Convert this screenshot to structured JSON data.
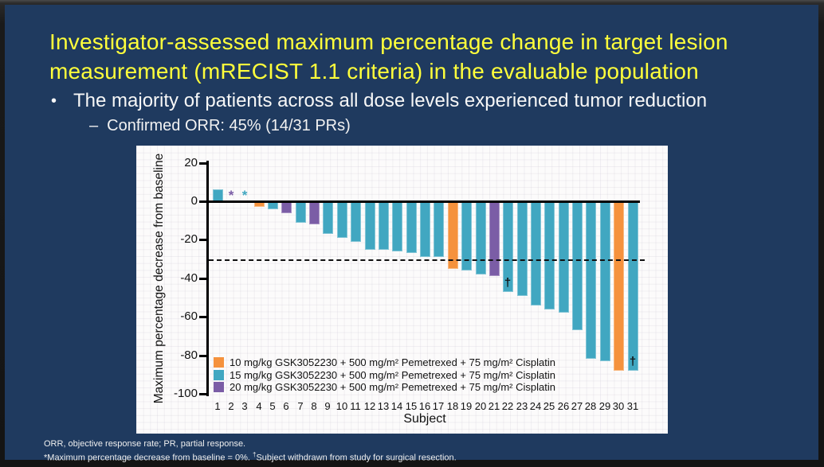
{
  "slide": {
    "title_line1": "Investigator-assessed maximum percentage change in target lesion",
    "title_line2": "measurement (mRECIST 1.1 criteria) in the evaluable population",
    "bullet_marker": "•",
    "bullet": "The majority of patients across all dose levels experienced tumor reduction",
    "sub_bullet_marker": "–",
    "sub_bullet": "Confirmed ORR: 45% (14/31 PRs)",
    "footnote_line1": "ORR, objective response rate; PR, partial response.",
    "footnote_line2_part1": "*Maximum percentage decrease from baseline = 0%. ",
    "footnote_dagger": "†",
    "footnote_line2_part2": "Subject withdrawn from study for surgical resection."
  },
  "colors": {
    "slide_background": "#1F3A5F",
    "title_text": "#FFFF3B",
    "body_text": "#FFFFFF",
    "dose_10": "#F5923D",
    "dose_15": "#41A7C1",
    "dose_20": "#7B5DA6",
    "axis": "#111111"
  },
  "chart_data": {
    "type": "bar",
    "title": "",
    "xlabel": "Subject",
    "ylabel": "Maximum percentage decrease from baseline",
    "ylim": [
      -100,
      20
    ],
    "yticks": [
      20,
      0,
      -20,
      -40,
      -60,
      -80,
      -100
    ],
    "reference_line_y": -30,
    "grid": "faint",
    "legend_position": "inside-bottom-left",
    "categories": [
      1,
      2,
      3,
      4,
      5,
      6,
      7,
      8,
      9,
      10,
      11,
      12,
      13,
      14,
      15,
      16,
      17,
      18,
      19,
      20,
      21,
      22,
      23,
      24,
      25,
      26,
      27,
      28,
      29,
      30,
      31
    ],
    "values": [
      6,
      0,
      0,
      -3,
      -4,
      -6,
      -11,
      -12,
      -17,
      -19,
      -21,
      -25,
      -25,
      -26,
      -27,
      -29,
      -29,
      -35,
      -36,
      -38,
      -39,
      -47,
      -49,
      -54,
      -56,
      -58,
      -67,
      -82,
      -83,
      -88,
      -88
    ],
    "dose_group": [
      "dose_15",
      "dose_20",
      "dose_15",
      "dose_10",
      "dose_15",
      "dose_20",
      "dose_15",
      "dose_20",
      "dose_15",
      "dose_15",
      "dose_15",
      "dose_15",
      "dose_15",
      "dose_15",
      "dose_15",
      "dose_15",
      "dose_15",
      "dose_10",
      "dose_15",
      "dose_15",
      "dose_20",
      "dose_15",
      "dose_15",
      "dose_15",
      "dose_15",
      "dose_15",
      "dose_15",
      "dose_15",
      "dose_15",
      "dose_10",
      "dose_15"
    ],
    "annotations": [
      {
        "subject": 2,
        "symbol": "*",
        "color_group": "dose_20"
      },
      {
        "subject": 3,
        "symbol": "*",
        "color_group": "dose_15"
      },
      {
        "subject": 22,
        "symbol": "†",
        "color_group": "axis"
      },
      {
        "subject": 31,
        "symbol": "†",
        "color_group": "axis"
      }
    ],
    "legend": [
      {
        "group": "dose_10",
        "label": "10 mg/kg GSK3052230 + 500 mg/m² Pemetrexed + 75 mg/m² Cisplatin"
      },
      {
        "group": "dose_15",
        "label": "15 mg/kg GSK3052230 + 500 mg/m² Pemetrexed + 75 mg/m² Cisplatin"
      },
      {
        "group": "dose_20",
        "label": "20 mg/kg GSK3052230 + 500 mg/m² Pemetrexed + 75 mg/m² Cisplatin"
      }
    ]
  }
}
